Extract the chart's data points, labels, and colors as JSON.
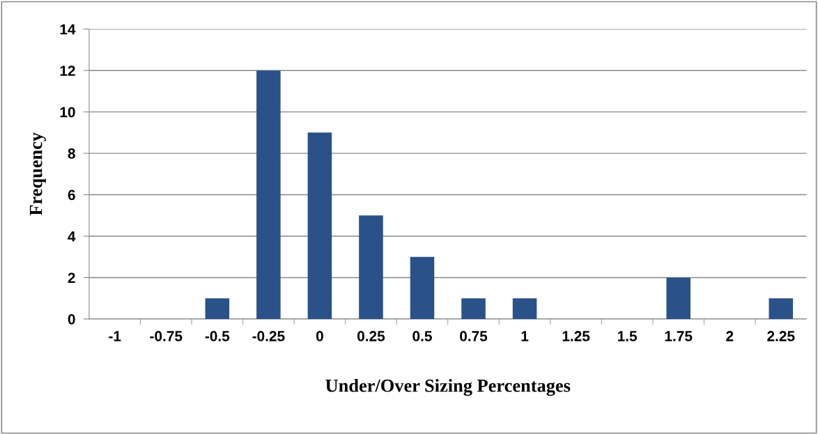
{
  "chart_data": {
    "type": "bar",
    "xlabel": "Under/Over Sizing Percentages",
    "ylabel": "Frequency",
    "categories": [
      "-1",
      "-0.75",
      "-0.5",
      "-0.25",
      "0",
      "0.25",
      "0.5",
      "0.75",
      "1",
      "1.25",
      "1.5",
      "1.75",
      "2",
      "2.25"
    ],
    "values": [
      0,
      0,
      1,
      12,
      9,
      5,
      3,
      1,
      1,
      0,
      0,
      2,
      0,
      1
    ],
    "color": "#2a5289",
    "ylim": [
      0,
      14
    ],
    "yticks": [
      0,
      2,
      4,
      6,
      8,
      10,
      12,
      14
    ],
    "grid": "y",
    "legend": false
  }
}
